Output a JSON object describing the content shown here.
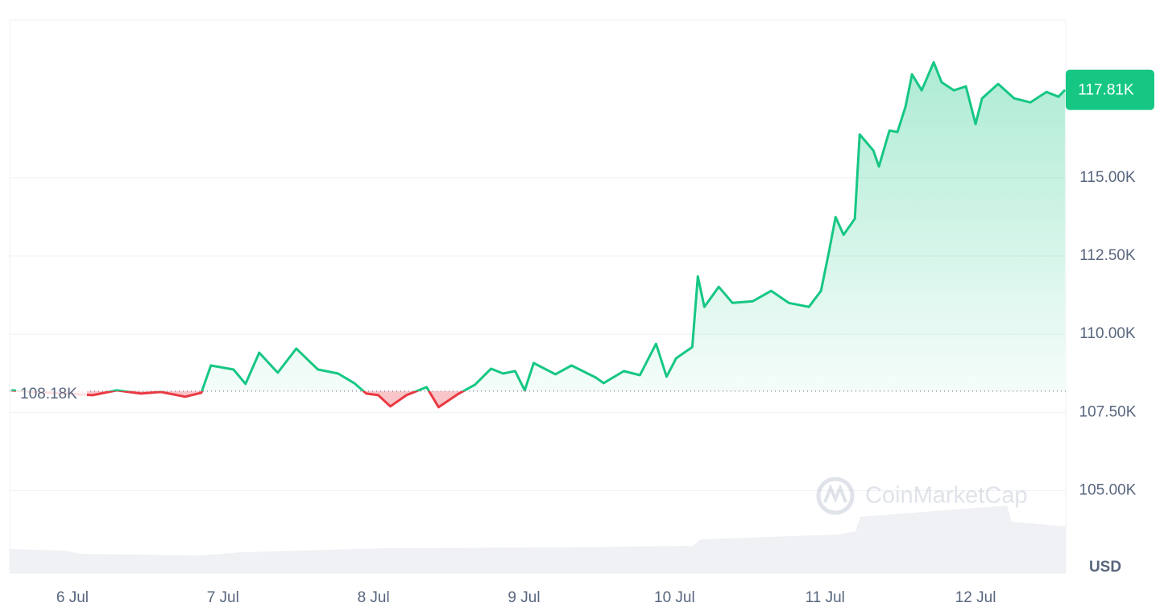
{
  "chart_data": {
    "type": "line",
    "x": [
      -0.406,
      -0.16,
      0.134,
      0.294,
      0.455,
      0.588,
      0.749,
      0.856,
      0.92,
      1.07,
      1.15,
      1.241,
      1.364,
      1.487,
      1.631,
      1.765,
      1.872,
      1.952,
      2.032,
      2.112,
      2.219,
      2.353,
      2.433,
      2.567,
      2.674,
      2.781,
      2.861,
      2.941,
      3.005,
      3.064,
      3.209,
      3.316,
      3.476,
      3.529,
      3.663,
      3.77,
      3.877,
      3.947,
      4.011,
      4.118,
      4.155,
      4.198,
      4.294,
      4.385,
      4.519,
      4.642,
      4.759,
      4.893,
      4.973,
      5.027,
      5.07,
      5.123,
      5.198,
      5.23,
      5.321,
      5.358,
      5.428,
      5.481,
      5.535,
      5.578,
      5.642,
      5.722,
      5.775,
      5.856,
      5.936,
      6.0,
      6.043,
      6.15,
      6.257,
      6.364,
      6.471,
      6.551,
      6.594
    ],
    "values": [
      108205,
      108128,
      108051,
      108205,
      108102,
      108154,
      108000,
      108128,
      109000,
      108872,
      108410,
      109410,
      108769,
      109538,
      108872,
      108743,
      108436,
      108102,
      108051,
      107692,
      108051,
      108308,
      107667,
      108102,
      108385,
      108897,
      108743,
      108820,
      108205,
      109077,
      108718,
      109000,
      108615,
      108436,
      108820,
      108692,
      109692,
      108641,
      109231,
      109590,
      111846,
      110872,
      111513,
      111000,
      111051,
      111385,
      111000,
      110872,
      111385,
      112667,
      113744,
      113180,
      113692,
      116385,
      115872,
      115359,
      116513,
      116462,
      117282,
      118308,
      117795,
      118692,
      118051,
      117795,
      117923,
      116718,
      117538,
      117999,
      117538,
      117410,
      117744,
      117590,
      117810
    ],
    "color_up": "#16c784",
    "color_down": "#ea3943",
    "baseline": {
      "value": 108180,
      "label": "108.18K"
    },
    "current": {
      "value": 117810,
      "label": "117.81K"
    },
    "xlim": [
      -0.417,
      6.599
    ],
    "xticks": [
      {
        "value": 0,
        "label": "6 Jul"
      },
      {
        "value": 1,
        "label": "7 Jul"
      },
      {
        "value": 2,
        "label": "8 Jul"
      },
      {
        "value": 3,
        "label": "9 Jul"
      },
      {
        "value": 4,
        "label": "10 Jul"
      },
      {
        "value": 5,
        "label": "11 Jul"
      },
      {
        "value": 6,
        "label": "12 Jul"
      }
    ],
    "ylim": [
      102360,
      120040
    ],
    "yticks": [
      {
        "value": 105000,
        "label": "105.00K"
      },
      {
        "value": 107500,
        "label": "107.50K"
      },
      {
        "value": 110000,
        "label": "110.00K"
      },
      {
        "value": 112500,
        "label": "112.50K"
      },
      {
        "value": 115000,
        "label": "115.00K"
      }
    ],
    "grid": true,
    "currency": "USD",
    "watermark": "CoinMarketCap"
  }
}
